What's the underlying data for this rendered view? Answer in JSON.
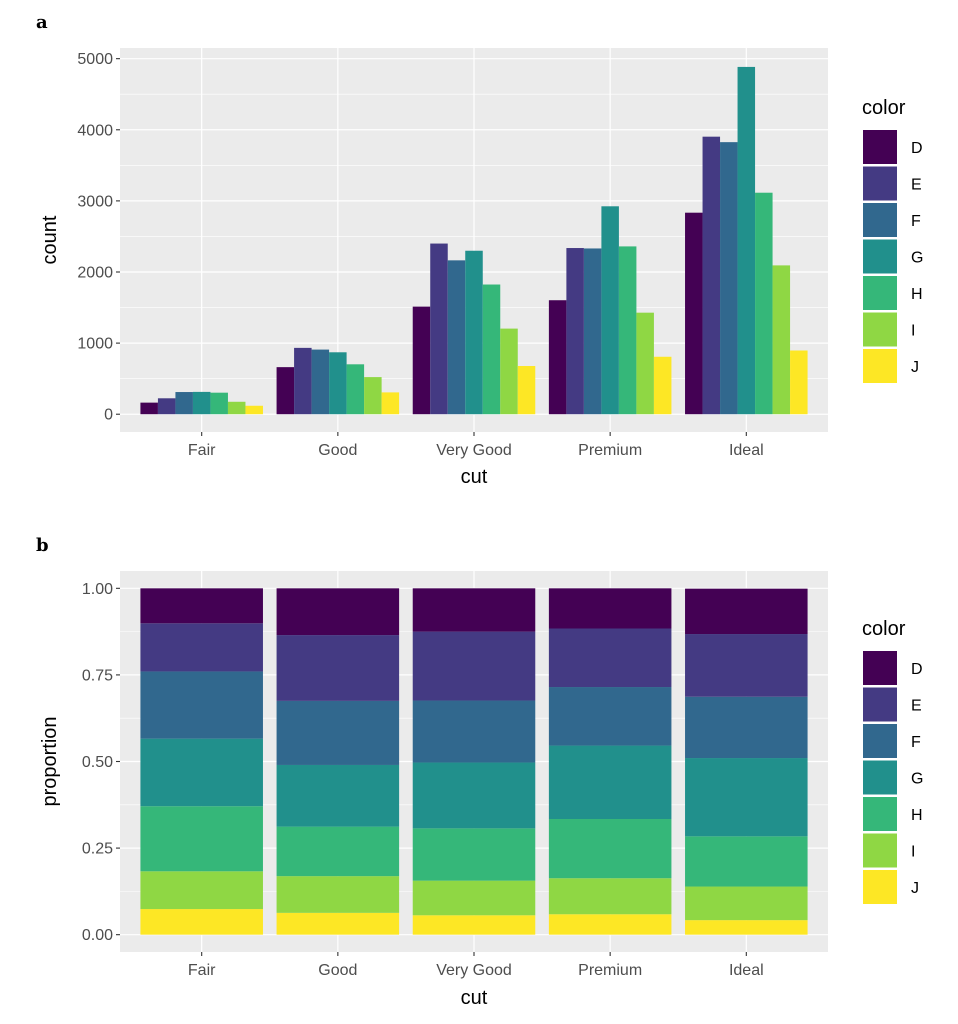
{
  "chart_data": [
    {
      "panel": "a",
      "type": "bar",
      "bar_mode": "dodge",
      "xlabel": "cut",
      "ylabel": "count",
      "ylim": [
        -250,
        5150
      ],
      "yticks": [
        0,
        1000,
        2000,
        3000,
        4000,
        5000
      ],
      "categories": [
        "Fair",
        "Good",
        "Very Good",
        "Premium",
        "Ideal"
      ],
      "legend": {
        "title": "color",
        "position": "right"
      },
      "series": [
        {
          "name": "D",
          "color": "#440154",
          "values": [
            163,
            662,
            1513,
            1603,
            2834
          ]
        },
        {
          "name": "E",
          "color": "#443a83",
          "values": [
            224,
            933,
            2400,
            2337,
            3903
          ]
        },
        {
          "name": "F",
          "color": "#31688e",
          "values": [
            312,
            909,
            2164,
            2331,
            3826
          ]
        },
        {
          "name": "G",
          "color": "#21908c",
          "values": [
            314,
            871,
            2299,
            2924,
            4884
          ]
        },
        {
          "name": "H",
          "color": "#35b779",
          "values": [
            303,
            702,
            1824,
            2360,
            3115
          ]
        },
        {
          "name": "I",
          "color": "#8fd744",
          "values": [
            175,
            522,
            1204,
            1428,
            2093
          ]
        },
        {
          "name": "J",
          "color": "#fde725",
          "values": [
            119,
            307,
            678,
            808,
            896
          ]
        }
      ]
    },
    {
      "panel": "b",
      "type": "bar",
      "bar_mode": "fill",
      "xlabel": "cut",
      "ylabel": "proportion",
      "ylim": [
        -0.05,
        1.05
      ],
      "yticks": [
        "0.00",
        "0.25",
        "0.50",
        "0.75",
        "1.00"
      ],
      "categories": [
        "Fair",
        "Good",
        "Very Good",
        "Premium",
        "Ideal"
      ],
      "legend": {
        "title": "color",
        "position": "right"
      },
      "series": [
        {
          "name": "D",
          "color": "#440154",
          "values": [
            0.101,
            0.135,
            0.125,
            0.116,
            0.131
          ]
        },
        {
          "name": "E",
          "color": "#443a83",
          "values": [
            0.139,
            0.19,
            0.199,
            0.169,
            0.181
          ]
        },
        {
          "name": "F",
          "color": "#31688e",
          "values": [
            0.194,
            0.185,
            0.179,
            0.169,
            0.177
          ]
        },
        {
          "name": "G",
          "color": "#21908c",
          "values": [
            0.195,
            0.178,
            0.19,
            0.212,
            0.226
          ]
        },
        {
          "name": "H",
          "color": "#35b779",
          "values": [
            0.188,
            0.143,
            0.151,
            0.171,
            0.145
          ]
        },
        {
          "name": "I",
          "color": "#8fd744",
          "values": [
            0.109,
            0.106,
            0.1,
            0.104,
            0.097
          ]
        },
        {
          "name": "J",
          "color": "#fde725",
          "values": [
            0.074,
            0.063,
            0.056,
            0.059,
            0.042
          ]
        }
      ]
    }
  ]
}
